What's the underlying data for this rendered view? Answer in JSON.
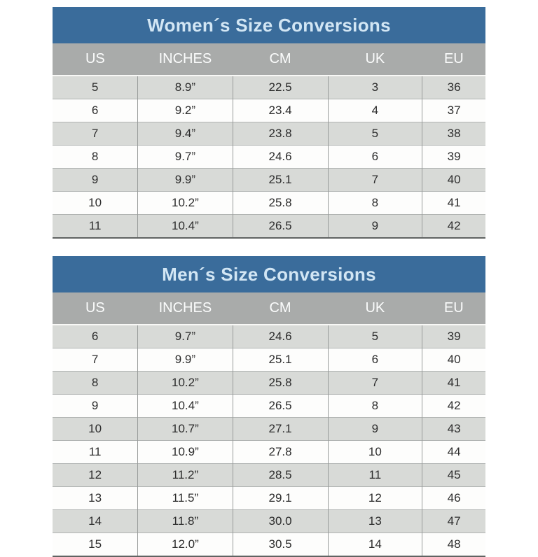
{
  "colors": {
    "title_bar_bg": "#3a6c9b",
    "title_text": "#d2e6f4",
    "header_row_bg": "#a9abaa",
    "header_row_text": "#fbfcfc",
    "row_gray": "#d8dad7",
    "row_white": "#fdfdfc",
    "cell_text": "#2c2c2c",
    "divider": "#989b9a"
  },
  "tables": [
    {
      "title": "Women´s Size Conversions",
      "columns": [
        "US",
        "INCHES",
        "CM",
        "UK",
        "EU"
      ],
      "rows": [
        [
          "5",
          "8.9”",
          "22.5",
          "3",
          "36"
        ],
        [
          "6",
          "9.2”",
          "23.4",
          "4",
          "37"
        ],
        [
          "7",
          "9.4”",
          "23.8",
          "5",
          "38"
        ],
        [
          "8",
          "9.7”",
          "24.6",
          "6",
          "39"
        ],
        [
          "9",
          "9.9”",
          "25.1",
          "7",
          "40"
        ],
        [
          "10",
          "10.2”",
          "25.8",
          "8",
          "41"
        ],
        [
          "11",
          "10.4”",
          "26.5",
          "9",
          "42"
        ]
      ]
    },
    {
      "title": "Men´s Size Conversions",
      "columns": [
        "US",
        "INCHES",
        "CM",
        "UK",
        "EU"
      ],
      "rows": [
        [
          "6",
          "9.7”",
          "24.6",
          "5",
          "39"
        ],
        [
          "7",
          "9.9”",
          "25.1",
          "6",
          "40"
        ],
        [
          "8",
          "10.2”",
          "25.8",
          "7",
          "41"
        ],
        [
          "9",
          "10.4”",
          "26.5",
          "8",
          "42"
        ],
        [
          "10",
          "10.7”",
          "27.1",
          "9",
          "43"
        ],
        [
          "11",
          "10.9”",
          "27.8",
          "10",
          "44"
        ],
        [
          "12",
          "11.2”",
          "28.5",
          "11",
          "45"
        ],
        [
          "13",
          "11.5”",
          "29.1",
          "12",
          "46"
        ],
        [
          "14",
          "11.8”",
          "30.0",
          "13",
          "47"
        ],
        [
          "15",
          "12.0”",
          "30.5",
          "14",
          "48"
        ]
      ]
    }
  ]
}
